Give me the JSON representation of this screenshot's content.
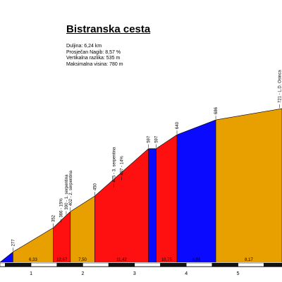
{
  "chart_data": {
    "type": "area",
    "title": "Bistranska cesta",
    "info": [
      "Duljina: 6,24 km",
      "Prosječan Nagib: 8,57 %",
      "Vertikalna razlika: 535 m",
      "Maksimalna visina: 780 m"
    ],
    "x_unit": "km",
    "x_ticks": [
      "1",
      "2",
      "3",
      "4",
      "5"
    ],
    "xlim": [
      -0.1,
      5.35
    ],
    "ylim": [
      245,
      780
    ],
    "points": [
      {
        "x": -0.1,
        "y": 245
      },
      {
        "x": 0.15,
        "y": 277
      },
      {
        "x": 0.93,
        "y": 352
      },
      {
        "x": 1.18,
        "y": 390
      },
      {
        "x": 1.26,
        "y": 402
      },
      {
        "x": 1.73,
        "y": 450
      },
      {
        "x": 2.77,
        "y": 597
      },
      {
        "x": 2.92,
        "y": 597
      },
      {
        "x": 3.32,
        "y": 640
      },
      {
        "x": 4.07,
        "y": 686
      },
      {
        "x": 5.35,
        "y": 721
      }
    ],
    "segments": [
      {
        "from": -0.1,
        "to": 0.15,
        "color": "#0a0aff",
        "label": ""
      },
      {
        "from": 0.15,
        "to": 0.93,
        "color": "#e8a000",
        "label": "6,33"
      },
      {
        "from": 0.93,
        "to": 1.26,
        "color": "#ff1010",
        "label": "12,67"
      },
      {
        "from": 1.26,
        "to": 1.73,
        "color": "#e8a000",
        "label": "7,50"
      },
      {
        "from": 1.73,
        "to": 2.77,
        "color": "#ff1010",
        "label": "11,42"
      },
      {
        "from": 2.77,
        "to": 2.92,
        "color": "#0a0aff",
        "label": ""
      },
      {
        "from": 2.92,
        "to": 3.32,
        "color": "#ff1010",
        "label": "10,75"
      },
      {
        "from": 3.32,
        "to": 4.07,
        "color": "#0a0aff",
        "label": "6,93"
      },
      {
        "from": 4.07,
        "to": 5.35,
        "color": "#e8a000",
        "label": "8,17"
      }
    ],
    "annotations": [
      {
        "x": 0.15,
        "y": 277,
        "text": "277",
        "rotated": true
      },
      {
        "x": 0.93,
        "y": 352,
        "text": "352",
        "rotated": true
      },
      {
        "x": 1.08,
        "y": 366,
        "text": "366 - 15%",
        "rotated": true
      },
      {
        "x": 1.18,
        "y": 390,
        "text": "390 - 1. serpentina",
        "rotated": true
      },
      {
        "x": 1.26,
        "y": 402,
        "text": "402 - 2. serpentina",
        "rotated": true
      },
      {
        "x": 1.73,
        "y": 450,
        "text": "450",
        "rotated": true
      },
      {
        "x": 2.1,
        "y": 475,
        "text": "475 - 3. serpentina",
        "rotated": true
      },
      {
        "x": 2.25,
        "y": 497,
        "text": "497 - 14%",
        "rotated": true
      },
      {
        "x": 2.77,
        "y": 597,
        "text": "597",
        "rotated": true
      },
      {
        "x": 2.92,
        "y": 597,
        "text": "597",
        "rotated": true
      },
      {
        "x": 3.32,
        "y": 640,
        "text": "640",
        "rotated": true
      },
      {
        "x": 4.07,
        "y": 686,
        "text": "686",
        "rotated": true
      },
      {
        "x": 5.3,
        "y": 721,
        "text": "721 - L.D. Osinca",
        "rotated": true
      }
    ],
    "grid": false,
    "legend": "none",
    "colors": {
      "orange": "#e8a000",
      "red": "#ff1010",
      "blue": "#0a0aff",
      "axis_dark": "#111111",
      "axis_light": "#ffffff"
    }
  }
}
